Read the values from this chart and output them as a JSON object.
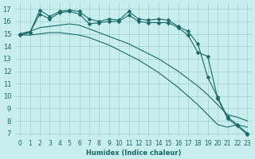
{
  "title": "",
  "xlabel": "Humidex (Indice chaleur)",
  "background_color": "#c8eeee",
  "grid_color": "#a8d4d4",
  "line_color": "#1a6868",
  "xlim": [
    -0.5,
    23.5
  ],
  "ylim": [
    6.8,
    17.5
  ],
  "yticks": [
    7,
    8,
    9,
    10,
    11,
    12,
    13,
    14,
    15,
    16,
    17
  ],
  "xticks": [
    0,
    1,
    2,
    3,
    4,
    5,
    6,
    7,
    8,
    9,
    10,
    11,
    12,
    13,
    14,
    15,
    16,
    17,
    18,
    19,
    20,
    21,
    22,
    23
  ],
  "series": [
    {
      "x": [
        0,
        1,
        2,
        3,
        4,
        5,
        6,
        7,
        8,
        9,
        10,
        11,
        12,
        13,
        14,
        15,
        16,
        17,
        18,
        19,
        20,
        21,
        22,
        23
      ],
      "y": [
        15.0,
        15.1,
        16.9,
        16.4,
        16.8,
        16.9,
        16.8,
        16.2,
        16.0,
        16.2,
        16.1,
        16.8,
        16.2,
        16.1,
        16.2,
        16.1,
        15.6,
        15.2,
        14.2,
        11.5,
        9.9,
        8.3,
        7.7,
        7.0
      ],
      "marker": "D",
      "markersize": 2.5
    },
    {
      "x": [
        0,
        1,
        2,
        3,
        4,
        5,
        6,
        7,
        8,
        9,
        10,
        11,
        12,
        13,
        14,
        15,
        16,
        17,
        18,
        19,
        20,
        21,
        22,
        23
      ],
      "y": [
        14.9,
        15.1,
        16.6,
        16.2,
        16.7,
        16.8,
        16.6,
        15.8,
        15.9,
        16.0,
        16.0,
        16.5,
        16.0,
        15.9,
        15.9,
        15.9,
        15.5,
        14.9,
        13.5,
        13.2,
        9.8,
        8.2,
        7.6,
        6.9
      ],
      "marker": "D",
      "markersize": 2.5
    },
    {
      "x": [
        0,
        1,
        2,
        3,
        4,
        5,
        6,
        7,
        8,
        9,
        10,
        11,
        12,
        13,
        14,
        15,
        16,
        17,
        18,
        19,
        20,
        21,
        22,
        23
      ],
      "y": [
        15.0,
        15.2,
        15.5,
        15.6,
        15.7,
        15.8,
        15.7,
        15.4,
        15.1,
        14.8,
        14.5,
        14.2,
        13.8,
        13.4,
        13.0,
        12.5,
        12.0,
        11.4,
        10.8,
        10.1,
        9.3,
        8.5,
        8.3,
        8.0
      ],
      "marker": null,
      "markersize": 0
    },
    {
      "x": [
        0,
        1,
        2,
        3,
        4,
        5,
        6,
        7,
        8,
        9,
        10,
        11,
        12,
        13,
        14,
        15,
        16,
        17,
        18,
        19,
        20,
        21,
        22,
        23
      ],
      "y": [
        14.9,
        14.9,
        15.0,
        15.1,
        15.1,
        15.0,
        14.9,
        14.7,
        14.4,
        14.1,
        13.7,
        13.3,
        12.9,
        12.4,
        11.9,
        11.3,
        10.7,
        10.0,
        9.3,
        8.5,
        7.7,
        7.5,
        7.7,
        7.5
      ],
      "marker": null,
      "markersize": 0
    }
  ]
}
